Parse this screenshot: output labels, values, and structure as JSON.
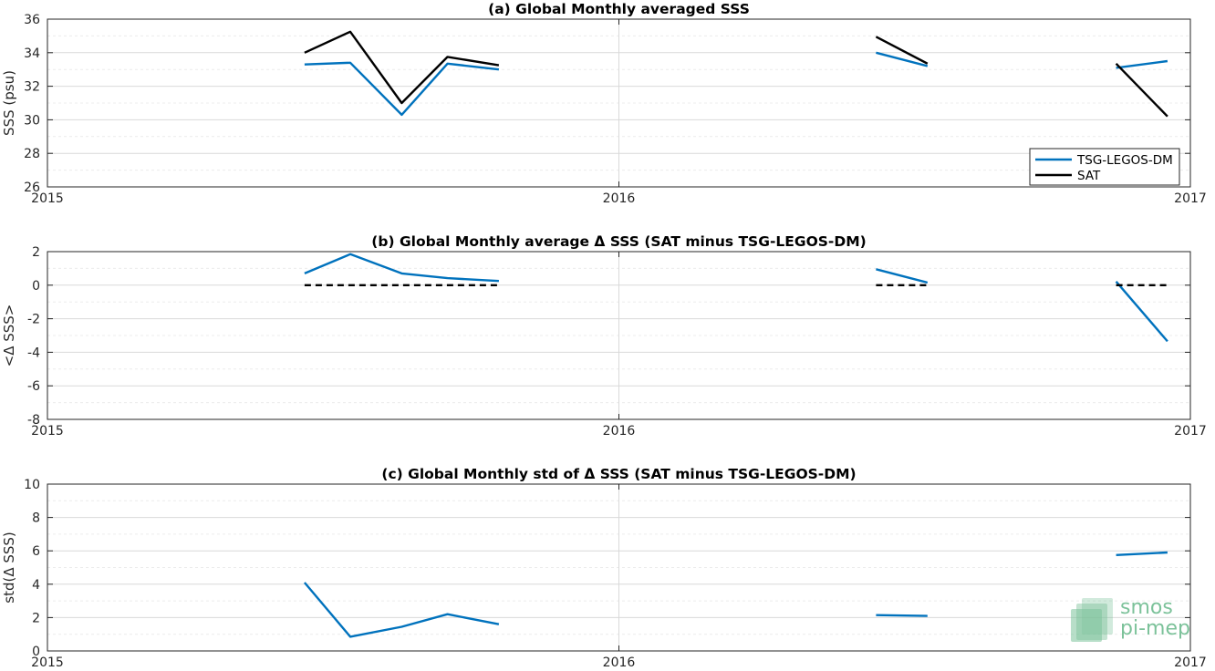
{
  "colors": {
    "tsg": "#0072BD",
    "sat": "#000000",
    "grid": "#d9d9d9",
    "axis": "#262626",
    "logo": "#7cc29a"
  },
  "logo": {
    "line1": "smos",
    "line2": "pi-mep"
  },
  "chart_data": [
    {
      "type": "line",
      "title": "(a) Global Monthly averaged SSS",
      "ylabel": "SSS (psu)",
      "xlim": [
        2015,
        2017
      ],
      "ylim": [
        26,
        36
      ],
      "xticks": [
        "2015",
        "2016",
        "2017"
      ],
      "yticks": [
        "26",
        "28",
        "30",
        "32",
        "34",
        "36"
      ],
      "ytick_values": [
        26,
        28,
        30,
        32,
        34,
        36
      ],
      "grid": true,
      "legend": "bottom-right",
      "series": [
        {
          "name": "TSG-LEGOS-DM",
          "color": "#0072BD",
          "dashed": false,
          "segments": [
            [
              [
                2015.45,
                33.3
              ],
              [
                2015.53,
                33.4
              ],
              [
                2015.62,
                30.3
              ],
              [
                2015.7,
                33.35
              ],
              [
                2015.79,
                33.0
              ]
            ],
            [
              [
                2016.45,
                34.0
              ],
              [
                2016.54,
                33.2
              ]
            ],
            [
              [
                2016.87,
                33.1
              ],
              [
                2016.96,
                33.5
              ]
            ]
          ]
        },
        {
          "name": "SAT",
          "color": "#000000",
          "dashed": false,
          "segments": [
            [
              [
                2015.45,
                34.0
              ],
              [
                2015.53,
                35.25
              ],
              [
                2015.62,
                31.0
              ],
              [
                2015.7,
                33.75
              ],
              [
                2015.79,
                33.25
              ]
            ],
            [
              [
                2016.45,
                34.95
              ],
              [
                2016.54,
                33.35
              ]
            ],
            [
              [
                2016.87,
                33.35
              ],
              [
                2016.96,
                30.2
              ]
            ]
          ]
        }
      ]
    },
    {
      "type": "line",
      "title": "(b) Global Monthly average Δ SSS (SAT minus TSG-LEGOS-DM)",
      "ylabel": "<Δ SSS>",
      "xlim": [
        2015,
        2017
      ],
      "ylim": [
        -8,
        2
      ],
      "xticks": [
        "2015",
        "2016",
        "2017"
      ],
      "yticks": [
        "-8",
        "-6",
        "-4",
        "-2",
        "0",
        "2"
      ],
      "ytick_values": [
        -8,
        -6,
        -4,
        -2,
        0,
        2
      ],
      "grid": true,
      "series": [
        {
          "color": "#0072BD",
          "dashed": false,
          "segments": [
            [
              [
                2015.45,
                0.7
              ],
              [
                2015.53,
                1.85
              ],
              [
                2015.62,
                0.7
              ],
              [
                2015.7,
                0.42
              ],
              [
                2015.79,
                0.25
              ]
            ],
            [
              [
                2016.45,
                0.95
              ],
              [
                2016.54,
                0.15
              ]
            ],
            [
              [
                2016.87,
                0.22
              ],
              [
                2016.96,
                -3.35
              ]
            ]
          ]
        },
        {
          "color": "#000000",
          "dashed": true,
          "segments": [
            [
              [
                2015.45,
                0.0
              ],
              [
                2015.79,
                0.0
              ]
            ],
            [
              [
                2016.45,
                0.0
              ],
              [
                2016.54,
                0.0
              ]
            ],
            [
              [
                2016.87,
                0.0
              ],
              [
                2016.96,
                0.0
              ]
            ]
          ]
        }
      ]
    },
    {
      "type": "line",
      "title": "(c) Global Monthly std of Δ SSS (SAT minus TSG-LEGOS-DM)",
      "ylabel": "std(Δ SSS)",
      "xlim": [
        2015,
        2017
      ],
      "ylim": [
        0,
        10
      ],
      "xticks": [
        "2015",
        "2016",
        "2017"
      ],
      "yticks": [
        "0",
        "2",
        "4",
        "6",
        "8",
        "10"
      ],
      "ytick_values": [
        0,
        2,
        4,
        6,
        8,
        10
      ],
      "grid": true,
      "series": [
        {
          "color": "#0072BD",
          "dashed": false,
          "segments": [
            [
              [
                2015.45,
                4.1
              ],
              [
                2015.53,
                0.85
              ],
              [
                2015.62,
                1.45
              ],
              [
                2015.7,
                2.2
              ],
              [
                2015.79,
                1.6
              ]
            ],
            [
              [
                2016.45,
                2.15
              ],
              [
                2016.54,
                2.1
              ]
            ],
            [
              [
                2016.87,
                5.75
              ],
              [
                2016.96,
                5.9
              ]
            ]
          ]
        }
      ]
    }
  ]
}
